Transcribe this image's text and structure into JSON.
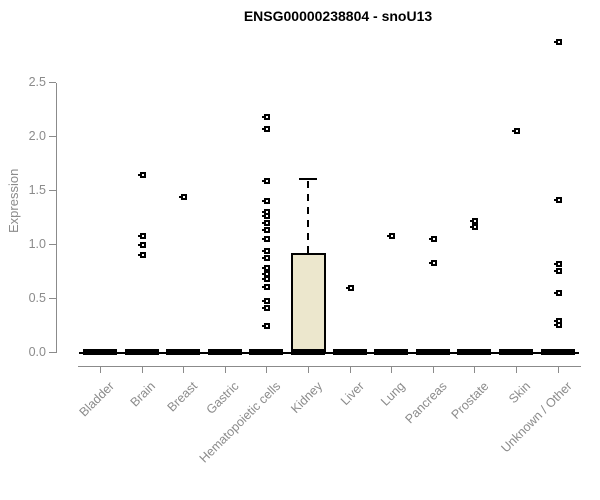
{
  "chart_data": {
    "type": "boxplot",
    "title": "ENSG00000238804 - snoU13",
    "ylabel": "Expression",
    "xlabel": "",
    "ylim": [
      0,
      2.5
    ],
    "yticks": [
      "0.0",
      "0.5",
      "1.0",
      "1.5",
      "2.0",
      "2.5"
    ],
    "grid": false,
    "legend": false,
    "categories": [
      "Bladder",
      "Brain",
      "Breast",
      "Gastric",
      "Hematopoietic cells",
      "Kidney",
      "Liver",
      "Lung",
      "Pancreas",
      "Prostate",
      "Skin",
      "Unknown / Other"
    ],
    "series": [
      {
        "category": "Bladder",
        "box": {
          "q1": 0,
          "median": 0,
          "q3": 0,
          "whisker_low": 0,
          "whisker_high": 0
        },
        "outliers": []
      },
      {
        "category": "Brain",
        "box": {
          "q1": 0,
          "median": 0,
          "q3": 0,
          "whisker_low": 0,
          "whisker_high": 0
        },
        "outliers": [
          0.9,
          0.99,
          1.08,
          1.64
        ]
      },
      {
        "category": "Breast",
        "box": {
          "q1": 0,
          "median": 0,
          "q3": 0,
          "whisker_low": 0,
          "whisker_high": 0
        },
        "outliers": [
          1.44
        ]
      },
      {
        "category": "Gastric",
        "box": {
          "q1": 0,
          "median": 0,
          "q3": 0,
          "whisker_low": 0,
          "whisker_high": 0
        },
        "outliers": []
      },
      {
        "category": "Hematopoietic cells",
        "box": {
          "q1": 0,
          "median": 0,
          "q3": 0,
          "whisker_low": 0,
          "whisker_high": 0
        },
        "outliers": [
          0.24,
          0.41,
          0.47,
          0.6,
          0.68,
          0.72,
          0.78,
          0.87,
          0.94,
          1.05,
          1.13,
          1.2,
          1.26,
          1.3,
          1.4,
          1.59,
          2.07,
          2.18
        ]
      },
      {
        "category": "Kidney",
        "box": {
          "q1": 0,
          "median": 0,
          "q3": 0.92,
          "whisker_low": 0,
          "whisker_high": 1.61
        },
        "outliers": []
      },
      {
        "category": "Liver",
        "box": {
          "q1": 0,
          "median": 0,
          "q3": 0,
          "whisker_low": 0,
          "whisker_high": 0
        },
        "outliers": [
          0.59
        ]
      },
      {
        "category": "Lung",
        "box": {
          "q1": 0,
          "median": 0,
          "q3": 0,
          "whisker_low": 0,
          "whisker_high": 0
        },
        "outliers": [
          1.08
        ]
      },
      {
        "category": "Pancreas",
        "box": {
          "q1": 0,
          "median": 0,
          "q3": 0,
          "whisker_low": 0,
          "whisker_high": 0
        },
        "outliers": [
          0.83,
          1.05
        ]
      },
      {
        "category": "Prostate",
        "box": {
          "q1": 0,
          "median": 0,
          "q3": 0,
          "whisker_low": 0,
          "whisker_high": 0
        },
        "outliers": [
          1.16,
          1.22
        ]
      },
      {
        "category": "Skin",
        "box": {
          "q1": 0,
          "median": 0,
          "q3": 0,
          "whisker_low": 0,
          "whisker_high": 0
        },
        "outliers": [
          2.05
        ]
      },
      {
        "category": "Unknown / Other",
        "box": {
          "q1": 0,
          "median": 0,
          "q3": 0,
          "whisker_low": 0,
          "whisker_high": 0
        },
        "outliers": [
          0.25,
          0.29,
          0.55,
          0.75,
          0.82,
          1.41,
          2.88
        ]
      }
    ],
    "colors": {
      "box_fill": "#ece7cd",
      "box_border": "#000000",
      "marker": "#000000",
      "axis": "#8b8b8b",
      "tick_label": "#8b8b8b",
      "title": "#000000"
    }
  }
}
